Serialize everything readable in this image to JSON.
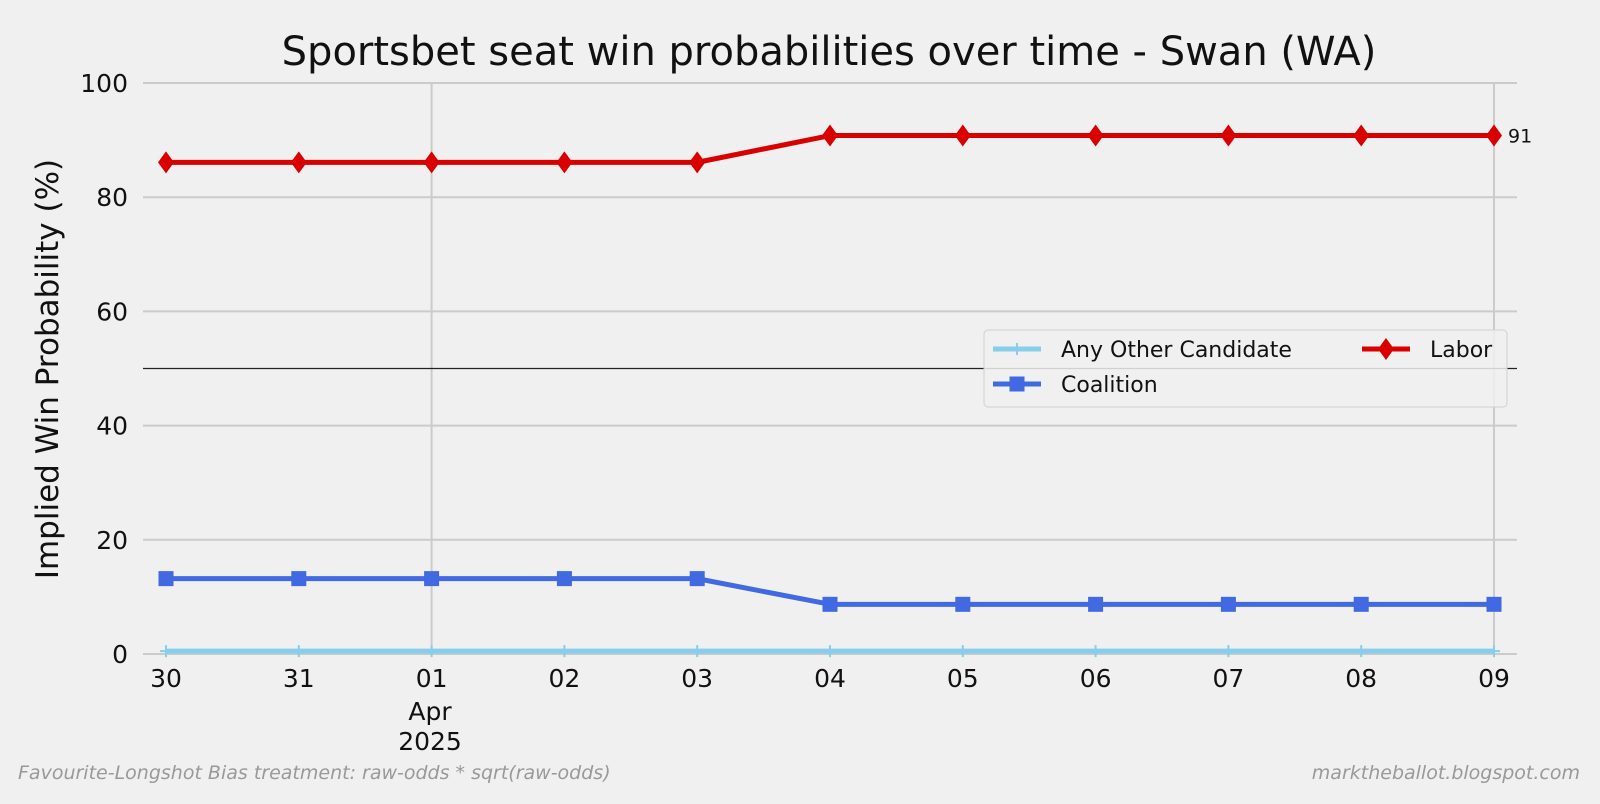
{
  "chart_data": {
    "type": "line",
    "title": "Sportsbet seat win probabilities over time - Swan (WA)",
    "xlabel": "",
    "ylabel": "Implied Win Probability (%)",
    "x": [
      "2025-03-30",
      "2025-03-31",
      "2025-04-01",
      "2025-04-02",
      "2025-04-03",
      "2025-04-04",
      "2025-04-05",
      "2025-04-06",
      "2025-04-07",
      "2025-04-08",
      "2025-04-09"
    ],
    "x_tick_labels": [
      "30",
      "31",
      "01",
      "02",
      "03",
      "04",
      "05",
      "06",
      "07",
      "08",
      "09"
    ],
    "x_tick_sublabel": {
      "month": "Apr",
      "year": "2025"
    },
    "ylim": [
      0,
      100
    ],
    "y_ticks": [
      0,
      20,
      40,
      60,
      80,
      100
    ],
    "grid": true,
    "reference_line": 50,
    "legend_placement": "right",
    "series": [
      {
        "name": "Any Other Candidate",
        "color": "#87ceeb",
        "marker": "plus",
        "values": [
          0.5,
          0.5,
          0.5,
          0.5,
          0.5,
          0.5,
          0.5,
          0.5,
          0.5,
          0.5,
          0.5
        ]
      },
      {
        "name": "Coalition",
        "color": "#4169e1",
        "marker": "square",
        "values": [
          13.2,
          13.2,
          13.2,
          13.2,
          13.2,
          8.7,
          8.7,
          8.7,
          8.7,
          8.7,
          8.7
        ]
      },
      {
        "name": "Labor",
        "color": "#d90000",
        "marker": "diamond",
        "values": [
          86.1,
          86.1,
          86.1,
          86.1,
          86.1,
          90.8,
          90.8,
          90.8,
          90.8,
          90.8,
          90.8
        ]
      }
    ],
    "end_label": {
      "series": "Labor",
      "text": "91"
    }
  },
  "footer": {
    "left": "Favourite-Longshot Bias treatment: raw-odds * sqrt(raw-odds)",
    "right": "marktheballot.blogspot.com"
  }
}
